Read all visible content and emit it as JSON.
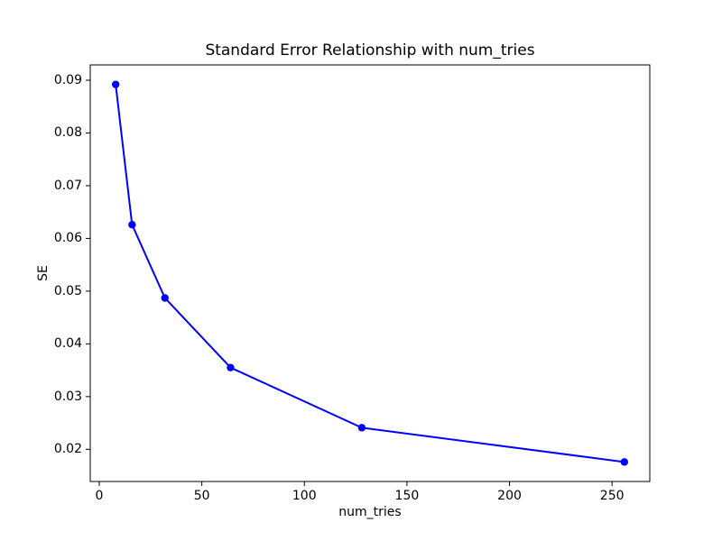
{
  "figure": {
    "background": "#ffffff",
    "frame_color": "#000000",
    "text_color": "#000000"
  },
  "chart_data": {
    "type": "line",
    "title": "Standard Error Relationship with num_tries",
    "xlabel": "num_tries",
    "ylabel": "SE",
    "series": [
      {
        "name": "SE",
        "x": [
          8,
          16,
          32,
          64,
          128,
          256
        ],
        "y": [
          0.0892,
          0.0626,
          0.0487,
          0.0355,
          0.0241,
          0.0176
        ],
        "line_color": "#0000ff",
        "marker": "circle"
      }
    ],
    "x_ticks": [
      0,
      50,
      100,
      150,
      200,
      250
    ],
    "y_ticks": [
      0.02,
      0.03,
      0.04,
      0.05,
      0.06,
      0.07,
      0.08,
      0.09
    ],
    "y_tick_decimals": 2,
    "xlim": [
      -4.4,
      268.4
    ],
    "ylim": [
      0.0139,
      0.0929
    ],
    "grid": false,
    "legend_position": "none"
  }
}
